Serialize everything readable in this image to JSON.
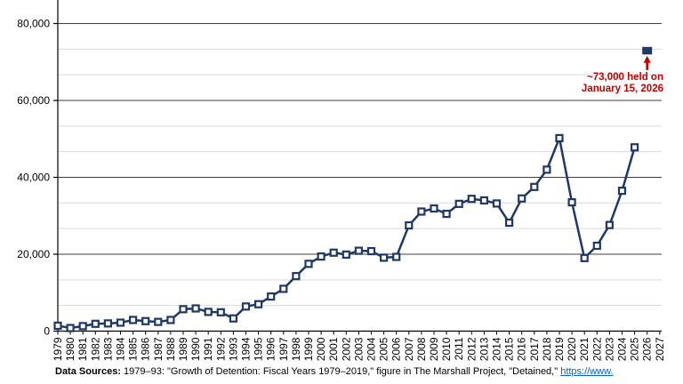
{
  "chart_data": {
    "type": "line",
    "years": [
      1979,
      1980,
      1981,
      1982,
      1983,
      1984,
      1985,
      1986,
      1987,
      1988,
      1989,
      1990,
      1991,
      1992,
      1993,
      1994,
      1995,
      1996,
      1997,
      1998,
      1999,
      2000,
      2001,
      2002,
      2003,
      2004,
      2005,
      2006,
      2007,
      2008,
      2009,
      2010,
      2011,
      2012,
      2013,
      2014,
      2015,
      2016,
      2017,
      2018,
      2019,
      2020,
      2021,
      2022,
      2023,
      2024,
      2025
    ],
    "values": [
      1400,
      800,
      1300,
      1900,
      2000,
      2200,
      2900,
      2600,
      2400,
      2900,
      5700,
      5900,
      5000,
      4900,
      3300,
      6400,
      7000,
      9000,
      11000,
      14300,
      17500,
      19400,
      20400,
      19900,
      20900,
      20800,
      19100,
      19300,
      27500,
      31100,
      31900,
      30500,
      33100,
      34400,
      34000,
      33200,
      28200,
      34500,
      37500,
      42000,
      50200,
      33500,
      19000,
      22200,
      27600,
      36500,
      47800
    ],
    "x_axis": {
      "tick_years": [
        1979,
        1980,
        1981,
        1982,
        1983,
        1984,
        1985,
        1986,
        1987,
        1988,
        1989,
        1990,
        1991,
        1992,
        1993,
        1994,
        1995,
        1996,
        1997,
        1998,
        1999,
        2000,
        2001,
        2002,
        2003,
        2004,
        2005,
        2006,
        2007,
        2008,
        2009,
        2010,
        2011,
        2012,
        2013,
        2014,
        2015,
        2016,
        2017,
        2018,
        2019,
        2020,
        2021,
        2022,
        2023,
        2024,
        2025,
        2026,
        2027
      ]
    },
    "y_axis": {
      "tick_values": [
        0,
        20000,
        40000,
        60000,
        80000
      ],
      "tick_labels": [
        "0",
        "20,000",
        "40,000",
        "60,000",
        "80,000"
      ],
      "minor_gridline_step": 6667,
      "ylim": [
        0,
        86000
      ]
    },
    "annotation": {
      "year": 2026,
      "value": 73000,
      "line1": "~73,000 held on",
      "line2": "January 15, 2026"
    },
    "grid": true,
    "legend_position": "none",
    "marker": "square"
  },
  "colors": {
    "line": "#1F3864",
    "marker_fill": "#ffffff",
    "annotation_red": "#C00000",
    "major_grid": "#3f3f3f",
    "minor_grid": "#d9d9d9",
    "axis": "#000000",
    "link_blue": "#0563C1"
  },
  "footer": {
    "label": "Data Sources:",
    "text": "1979–93: \"Growth of Detention: Fiscal Years 1979–2019,\" figure in The Marshall Project, \"Detained,\"",
    "link_text": "https://www."
  }
}
